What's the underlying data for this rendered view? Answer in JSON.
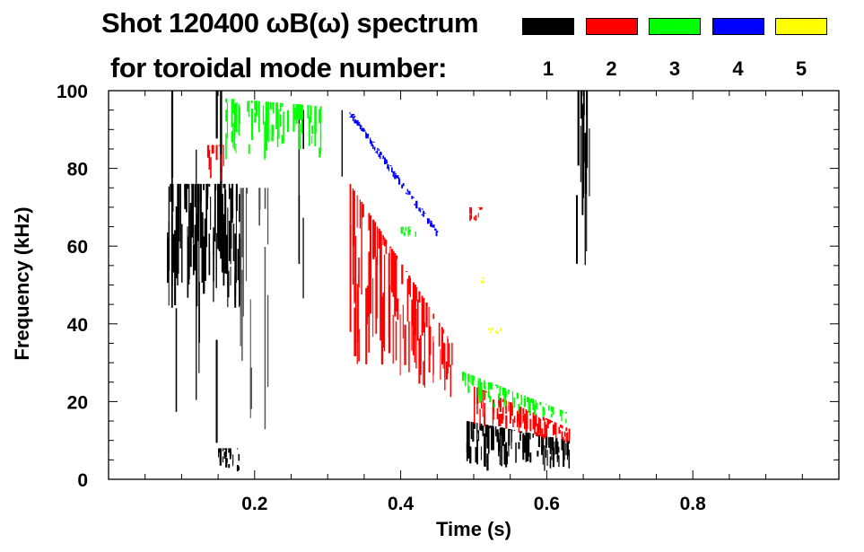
{
  "chart_data": {
    "type": "heatmap",
    "title": "Shot 120400 ωB(ω) spectrum",
    "subtitle": "for toroidal mode number:",
    "xlabel": "Time (s)",
    "ylabel": "Frequency (kHz)",
    "xlim": [
      0.0,
      1.0
    ],
    "ylim": [
      0,
      100
    ],
    "xticks": [
      {
        "v": 0.2,
        "label": "0.2"
      },
      {
        "v": 0.4,
        "label": "0.4"
      },
      {
        "v": 0.6,
        "label": "0.6"
      },
      {
        "v": 0.8,
        "label": "0.8"
      }
    ],
    "yticks": [
      {
        "v": 0,
        "label": "0"
      },
      {
        "v": 20,
        "label": "20"
      },
      {
        "v": 40,
        "label": "40"
      },
      {
        "v": 60,
        "label": "60"
      },
      {
        "v": 80,
        "label": "80"
      },
      {
        "v": 100,
        "label": "100"
      }
    ],
    "legend": [
      {
        "mode": "1",
        "color": "#000000"
      },
      {
        "mode": "2",
        "color": "#ff0000"
      },
      {
        "mode": "3",
        "color": "#00ff00"
      },
      {
        "mode": "4",
        "color": "#0000ff"
      },
      {
        "mode": "5",
        "color": "#ffff00"
      }
    ],
    "legend_placement": "top-right",
    "regions": [
      {
        "mode": 1,
        "t": [
          0.08,
          0.18
        ],
        "f0": [
          44,
          76
        ],
        "f1": [
          44,
          76
        ],
        "density": 0.9
      },
      {
        "mode": 1,
        "t": [
          0.08,
          0.22
        ],
        "f0": [
          5,
          100
        ],
        "f1": [
          5,
          100
        ],
        "density": 0.12
      },
      {
        "mode": 1,
        "t": [
          0.18,
          0.22
        ],
        "f0": [
          8,
          75
        ],
        "f1": [
          8,
          75
        ],
        "density": 0.5,
        "gray": true
      },
      {
        "mode": 1,
        "t": [
          0.15,
          0.18
        ],
        "f0": [
          2,
          8
        ],
        "f1": [
          2,
          8
        ],
        "density": 0.6
      },
      {
        "mode": 1,
        "t": [
          0.26,
          0.32
        ],
        "f0": [
          40,
          95
        ],
        "f1": [
          40,
          95
        ],
        "density": 0.08
      },
      {
        "mode": 1,
        "t": [
          0.49,
          0.63
        ],
        "f0": [
          2,
          15
        ],
        "f1": [
          2,
          10
        ],
        "density": 0.85
      },
      {
        "mode": 1,
        "t": [
          0.64,
          0.66
        ],
        "f0": [
          55,
          100
        ],
        "f1": [
          55,
          100
        ],
        "density": 0.7
      },
      {
        "mode": 2,
        "t": [
          0.135,
          0.16
        ],
        "f0": [
          76,
          86
        ],
        "f1": [
          76,
          86
        ],
        "density": 0.8
      },
      {
        "mode": 2,
        "t": [
          0.33,
          0.47
        ],
        "f0": [
          30,
          76
        ],
        "f1": [
          20,
          35
        ],
        "density": 0.85
      },
      {
        "mode": 2,
        "t": [
          0.49,
          0.51
        ],
        "f0": [
          66,
          70
        ],
        "f1": [
          66,
          70
        ],
        "density": 0.8
      },
      {
        "mode": 2,
        "t": [
          0.5,
          0.63
        ],
        "f0": [
          14,
          24
        ],
        "f1": [
          9,
          13
        ],
        "density": 0.85
      },
      {
        "mode": 3,
        "t": [
          0.16,
          0.29
        ],
        "f0": [
          82,
          98
        ],
        "f1": [
          82,
          96
        ],
        "density": 0.55
      },
      {
        "mode": 3,
        "t": [
          0.4,
          0.42
        ],
        "f0": [
          62,
          65
        ],
        "f1": [
          62,
          65
        ],
        "density": 0.6
      },
      {
        "mode": 3,
        "t": [
          0.48,
          0.63
        ],
        "f0": [
          20,
          28
        ],
        "f1": [
          14,
          17
        ],
        "density": 0.6
      },
      {
        "mode": 4,
        "t": [
          0.33,
          0.45
        ],
        "f0": [
          93,
          95
        ],
        "f1": [
          62,
          64
        ],
        "density": 0.95
      },
      {
        "mode": 4,
        "t": [
          0.45,
          0.52
        ],
        "f0": [
          25,
          40
        ],
        "f1": [
          25,
          40
        ],
        "density": 0.05
      },
      {
        "mode": 5,
        "t": [
          0.52,
          0.54
        ],
        "f0": [
          37,
          39
        ],
        "f1": [
          37,
          39
        ],
        "density": 0.5
      },
      {
        "mode": 5,
        "t": [
          0.51,
          0.52
        ],
        "f0": [
          50,
          52
        ],
        "f1": [
          50,
          52
        ],
        "density": 0.5
      }
    ]
  }
}
